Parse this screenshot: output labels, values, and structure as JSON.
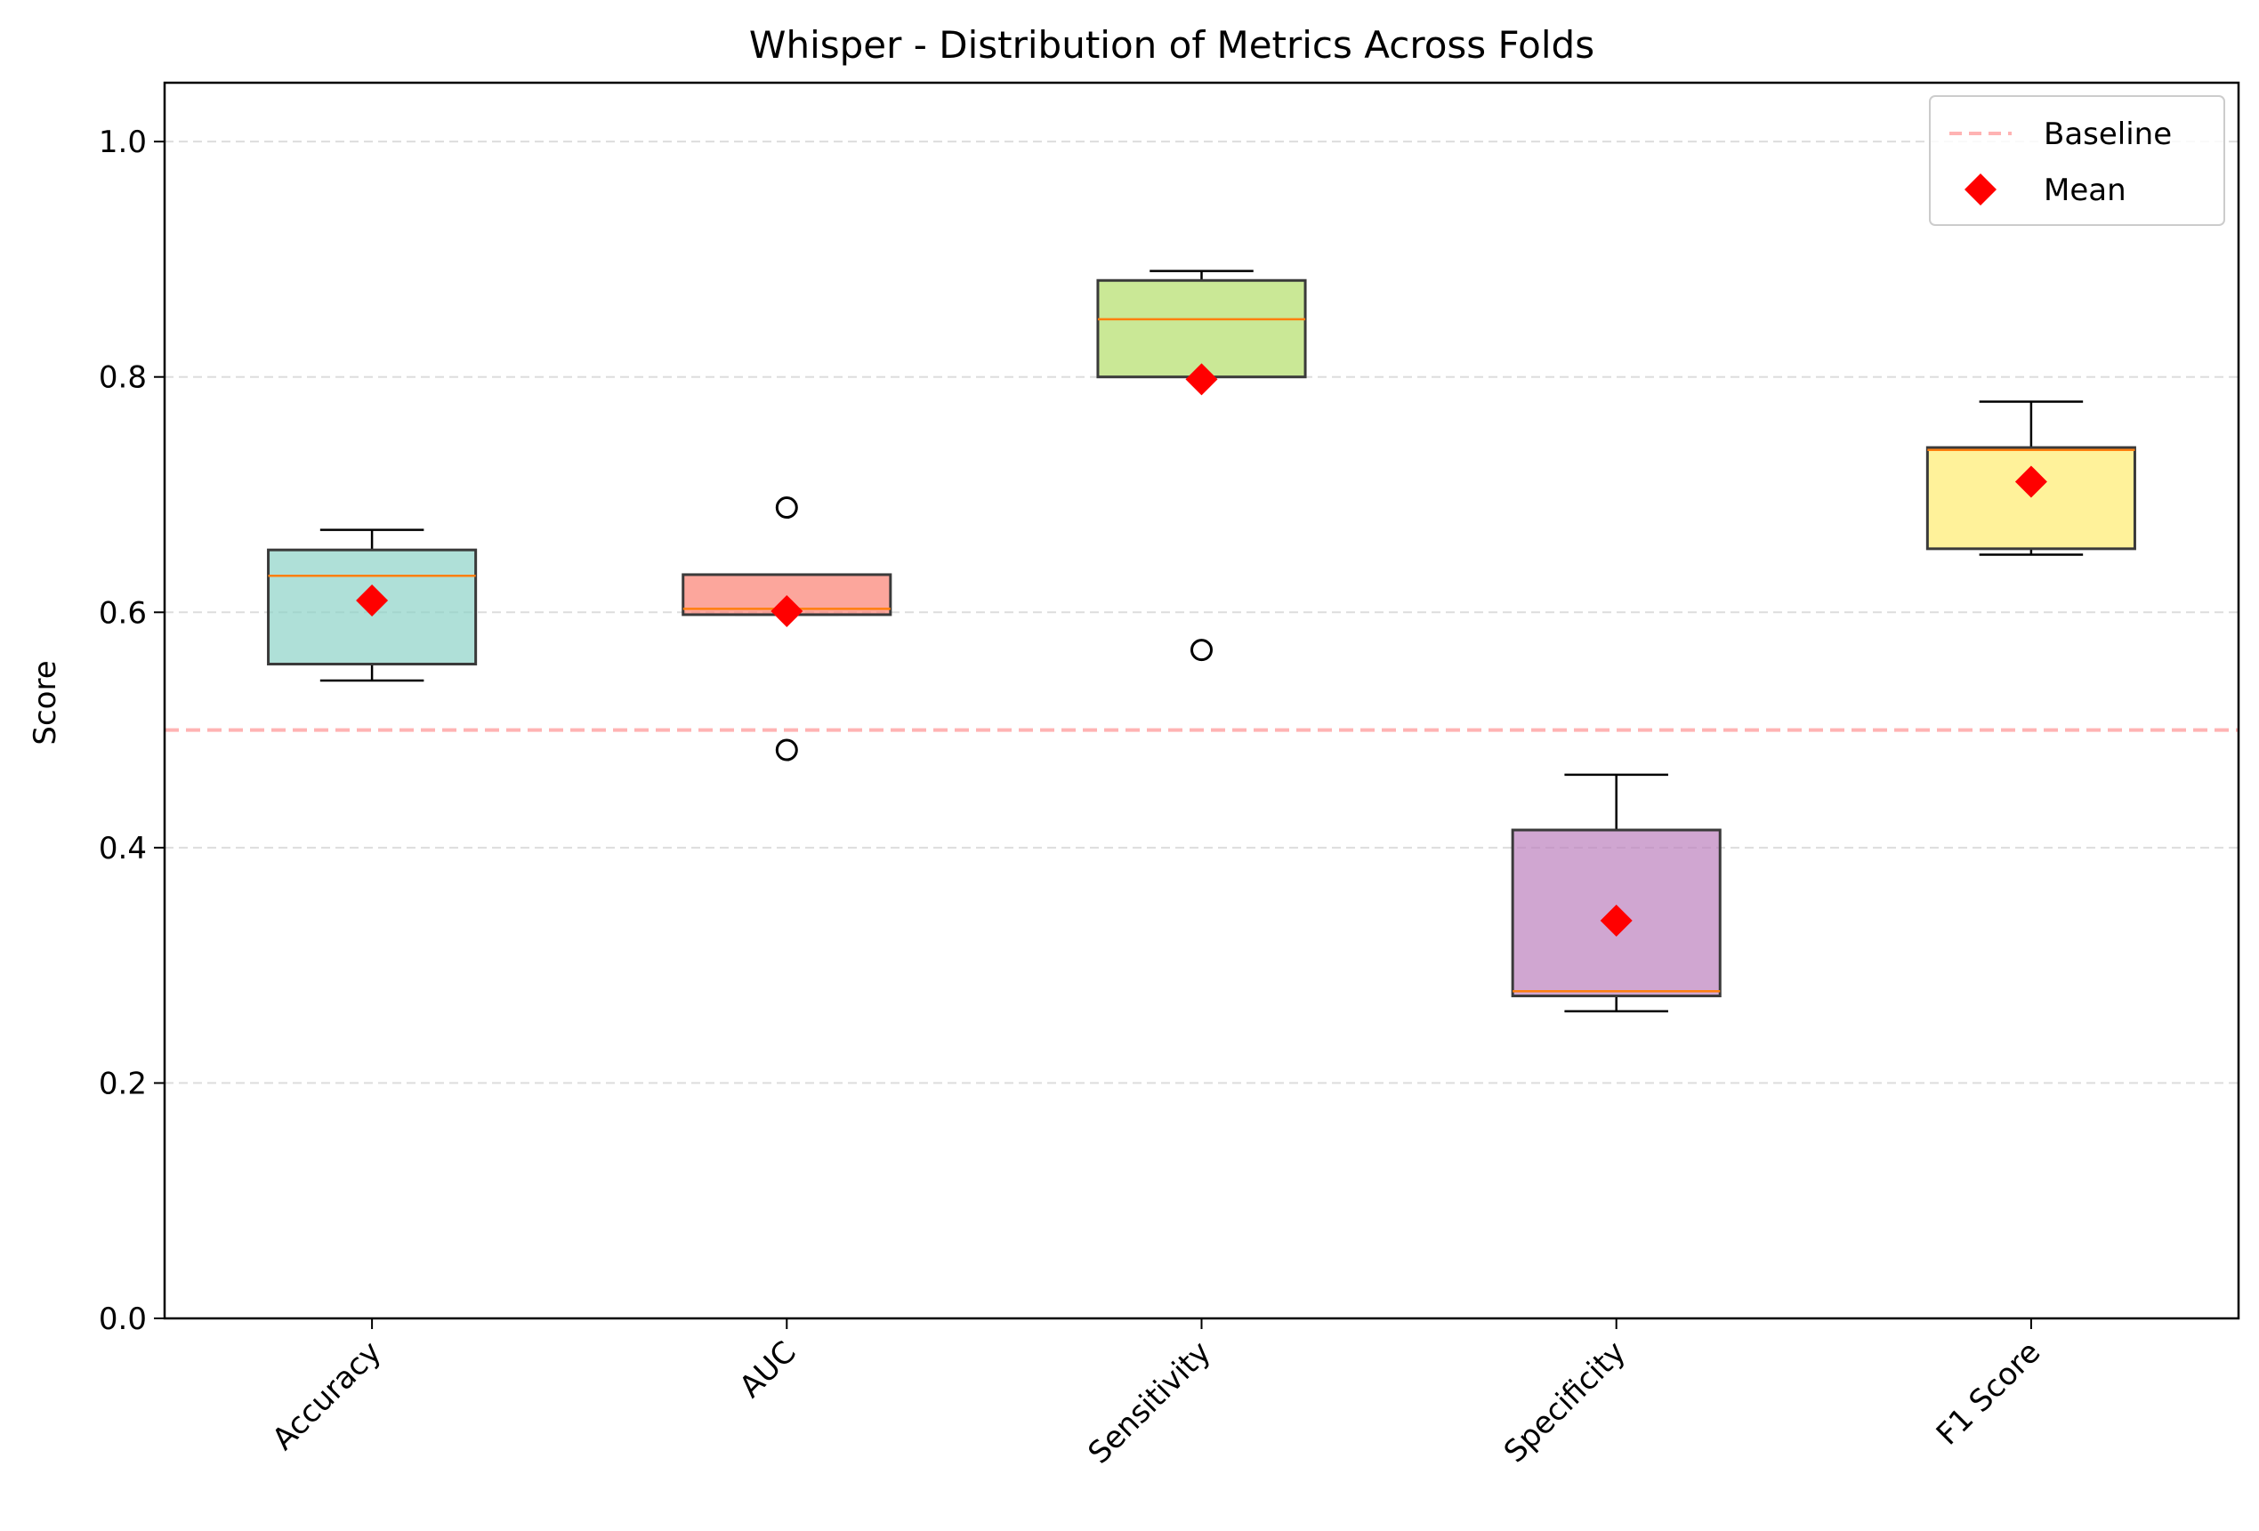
{
  "chart_data": {
    "type": "box",
    "title": "Whisper - Distribution of Metrics Across Folds",
    "xlabel": "",
    "ylabel": "Score",
    "ylim": [
      0,
      1.05
    ],
    "yticks": [
      "0.0",
      "0.2",
      "0.4",
      "0.6",
      "0.8",
      "1.0"
    ],
    "grid": "horizontal dashed",
    "legend_position": "top-right",
    "categories": [
      "Accuracy",
      "AUC",
      "Sensitivity",
      "Specificity",
      "F1 Score"
    ],
    "boxes": [
      {
        "name": "Accuracy",
        "whislo": 0.542,
        "q1": 0.556,
        "median": 0.631,
        "q3": 0.653,
        "whishi": 0.67,
        "mean": 0.61,
        "fliers": [],
        "color": "#8dd3c7"
      },
      {
        "name": "AUC",
        "whislo": 0.598,
        "q1": 0.598,
        "median": 0.603,
        "q3": 0.632,
        "whishi": 0.632,
        "mean": 0.601,
        "fliers": [
          0.689,
          0.483
        ],
        "color": "#fb8072"
      },
      {
        "name": "Sensitivity",
        "whislo": 0.8,
        "q1": 0.8,
        "median": 0.849,
        "q3": 0.882,
        "whishi": 0.89,
        "mean": 0.798,
        "fliers": [
          0.568
        ],
        "color": "#b3de69"
      },
      {
        "name": "Specificity",
        "whislo": 0.261,
        "q1": 0.274,
        "median": 0.278,
        "q3": 0.415,
        "whishi": 0.462,
        "mean": 0.338,
        "fliers": [],
        "color": "#bc80bd"
      },
      {
        "name": "F1 Score",
        "whislo": 0.649,
        "q1": 0.654,
        "median": 0.738,
        "q3": 0.74,
        "whishi": 0.779,
        "mean": 0.711,
        "fliers": [],
        "color": "#ffed6f"
      }
    ],
    "baseline": 0.5,
    "legend": [
      {
        "label": "Baseline",
        "marker": "dashed-line",
        "color": "#ffb3b3"
      },
      {
        "label": "Mean",
        "marker": "diamond",
        "color": "#ff0000"
      }
    ],
    "colors": {
      "median": "#ff7f0e",
      "mean": "#ff0000",
      "baseline": "#ffb3b3",
      "grid": "#dddddd",
      "box_edge": "#3a3a3a"
    }
  }
}
